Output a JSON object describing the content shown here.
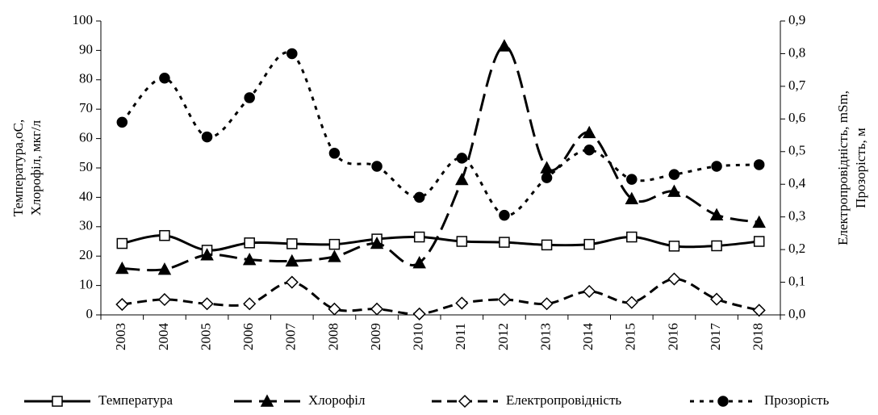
{
  "chart_data": {
    "type": "line",
    "ylabel": [
      "Температура,оС,",
      "Хлорофіл, мкг/л"
    ],
    "y2label": [
      "Електропровідність, mSm,",
      "Прозорість, м"
    ],
    "categories": [
      "2003",
      "2004",
      "2005",
      "2006",
      "2007",
      "2008",
      "2009",
      "2010",
      "2011",
      "2012",
      "2013",
      "2014",
      "2015",
      "2016",
      "2017",
      "2018"
    ],
    "ylim": [
      0,
      100
    ],
    "yticks": [
      0,
      10,
      20,
      30,
      40,
      50,
      60,
      70,
      80,
      90,
      100
    ],
    "y2lim": [
      0,
      0.9
    ],
    "y2ticks": [
      {
        "value": 0,
        "label": "0,0"
      },
      {
        "value": 0.1,
        "label": "0,1"
      },
      {
        "value": 0.2,
        "label": "0,2"
      },
      {
        "value": 0.3,
        "label": "0,3"
      },
      {
        "value": 0.4,
        "label": "0,4"
      },
      {
        "value": 0.5,
        "label": "0,5"
      },
      {
        "value": 0.6,
        "label": "0,6"
      },
      {
        "value": 0.7,
        "label": "0,7"
      },
      {
        "value": 0.8,
        "label": "0,8"
      },
      {
        "value": 0.9,
        "label": "0,9"
      }
    ],
    "legend": "bottom",
    "series": [
      {
        "name": "Температура",
        "color": "#000000",
        "line_style": "solid",
        "marker": "square",
        "marker_fill": "open",
        "values": [
          24.3,
          27,
          22,
          24.5,
          24.2,
          24,
          25.8,
          26.5,
          25,
          24.7,
          23.8,
          24,
          26.5,
          23.4,
          23.5,
          25
        ]
      },
      {
        "name": "Хлорофіл",
        "color": "#000000",
        "line_style": "longdash",
        "marker": "triangle",
        "marker_fill": "filled",
        "values": [
          15.8,
          15.5,
          20.4,
          18.8,
          18.3,
          19.8,
          24.3,
          17.7,
          46,
          91.5,
          50,
          62,
          39.5,
          42,
          34,
          31.5
        ]
      },
      {
        "name": "Електропровідність",
        "color": "#000000",
        "line_style": "dash",
        "marker": "diamond",
        "marker_fill": "open",
        "axis": "y2",
        "values": [
          0.032,
          0.047,
          0.034,
          0.034,
          0.1,
          0.018,
          0.018,
          0.003,
          0.036,
          0.047,
          0.034,
          0.072,
          0.038,
          0.11,
          0.048,
          0.014
        ]
      },
      {
        "name": "Прозорість",
        "color": "#000000",
        "line_style": "dot",
        "marker": "circle",
        "marker_fill": "filled",
        "axis": "y2",
        "values": [
          0.59,
          0.725,
          0.545,
          0.665,
          0.8,
          0.495,
          0.455,
          0.36,
          0.48,
          0.305,
          0.42,
          0.505,
          0.415,
          0.43,
          0.455,
          0.46
        ]
      }
    ]
  }
}
